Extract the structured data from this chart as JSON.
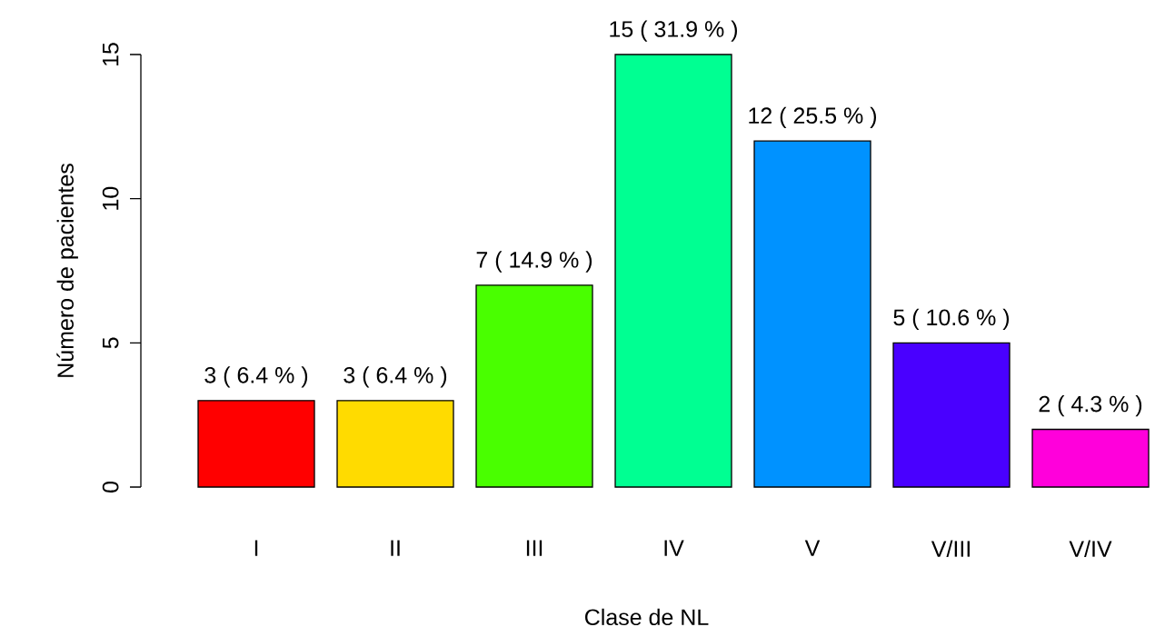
{
  "chart_data": {
    "type": "bar",
    "xlabel": "Clase de NL",
    "ylabel": "Número de pacientes",
    "categories": [
      "I",
      "II",
      "III",
      "IV",
      "V",
      "V/III",
      "V/IV"
    ],
    "values": [
      3,
      3,
      7,
      15,
      12,
      5,
      2
    ],
    "colors": [
      "#ff0000",
      "#ffdb00",
      "#49ff00",
      "#00ff92",
      "#0092ff",
      "#4900ff",
      "#ff00db"
    ],
    "value_labels": [
      "3 ( 6.4 % )",
      "3 ( 6.4 % )",
      "7 ( 14.9 % )",
      "15 ( 31.9 % )",
      "12 ( 25.5 % )",
      "5 ( 10.6 % )",
      "2 ( 4.3 % )"
    ],
    "ylim": [
      0,
      15
    ],
    "yticks": [
      0,
      5,
      10,
      15
    ]
  }
}
